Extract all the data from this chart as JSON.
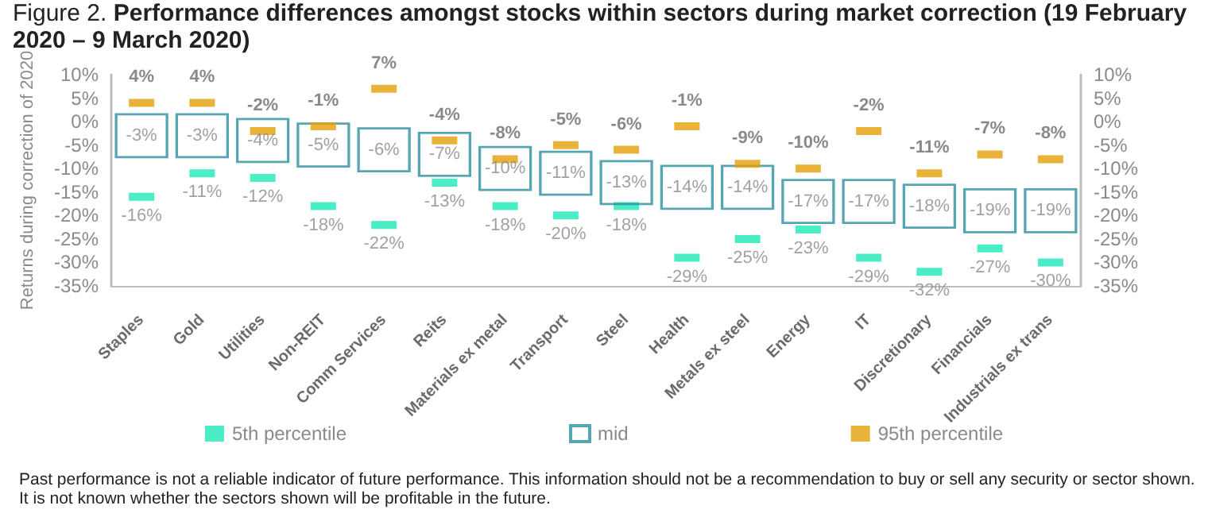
{
  "chart_data": {
    "type": "scatter",
    "title": "Figure 2. Performance differences amongst stocks within sectors during market correction (19 February 2020 – 9 March 2020)",
    "ylabel": "Returns during correction of 2020",
    "annotations": [
      "Past performance is not a reliable indicator of future performance. This information should not be a recommendation to buy or sell any security or sector shown. It is not known whether the sectors shown will be profitable in the future."
    ],
    "categories": [
      "Staples",
      "Gold",
      "Utilities",
      "Non-REIT",
      "Comm Services",
      "Reits",
      "Materials ex metal",
      "Transport",
      "Steel",
      "Health",
      "Metals ex steel",
      "Energy",
      "IT",
      "Discretionary",
      "Financials",
      "Industrials ex trans"
    ],
    "series": [
      {
        "name": "5th percentile",
        "color": "#1de9b6",
        "values": [
          -16,
          -11,
          -12,
          -18,
          -22,
          -13,
          -18,
          -20,
          -18,
          -29,
          -25,
          -23,
          -29,
          -32,
          -27,
          -30
        ],
        "value_labels": [
          "-16%",
          "-11%",
          "-12%",
          "-18%",
          "-22%",
          "-13%",
          "-18%",
          "-20%",
          "-18%",
          "-29%",
          "-25%",
          "-23%",
          "-29%",
          "-32%",
          "-27%",
          "-30%"
        ]
      },
      {
        "name": "mid",
        "color": "#2a8f9f",
        "marker": "square",
        "values": [
          -3,
          -3,
          -4,
          -5,
          -6,
          -7,
          -10,
          -11,
          -13,
          -14,
          -14,
          -17,
          -17,
          -18,
          -19,
          -19
        ],
        "value_labels": [
          "-3%",
          "-3%",
          "-4%",
          "-5%",
          "-6%",
          "-7%",
          "-10%",
          "-11%",
          "-13%",
          "-14%",
          "-14%",
          "-17%",
          "-17%",
          "-18%",
          "-19%",
          "-19%"
        ]
      },
      {
        "name": "95th percentile",
        "color": "#e3a008",
        "values": [
          4,
          4,
          -2,
          -1,
          7,
          -4,
          -8,
          -5,
          -6,
          -1,
          -9,
          -10,
          -2,
          -11,
          -7,
          -8
        ],
        "value_labels": [
          "4%",
          "4%",
          "-2%",
          "-1%",
          "7%",
          "-4%",
          "-8%",
          "-5%",
          "-6%",
          "-1%",
          "-9%",
          "-10%",
          "-2%",
          "-11%",
          "-7%",
          "-8%"
        ]
      }
    ],
    "legend": "bottom",
    "ylim": [
      -35,
      10
    ],
    "yticks": [
      {
        "value": 10,
        "label": "10%"
      },
      {
        "value": 5,
        "label": "5%"
      },
      {
        "value": 0,
        "label": "0%"
      },
      {
        "value": -5,
        "label": "-5%"
      },
      {
        "value": -10,
        "label": "-10%"
      },
      {
        "value": -15,
        "label": "-15%"
      },
      {
        "value": -20,
        "label": "-20%"
      },
      {
        "value": -25,
        "label": "-25%"
      },
      {
        "value": -30,
        "label": "-30%"
      },
      {
        "value": -35,
        "label": "-35%"
      }
    ],
    "y2lim": [
      -35,
      10
    ],
    "y2ticks": [
      {
        "value": 10,
        "label": "10%"
      },
      {
        "value": 5,
        "label": "5%"
      },
      {
        "value": 0,
        "label": "0%"
      },
      {
        "value": -5,
        "label": "-5%"
      },
      {
        "value": -10,
        "label": "-10%"
      },
      {
        "value": -15,
        "label": "-15%"
      },
      {
        "value": -20,
        "label": "-20%"
      },
      {
        "value": -25,
        "label": "-25%"
      },
      {
        "value": -30,
        "label": "-30%"
      },
      {
        "value": -35,
        "label": "-35%"
      }
    ]
  }
}
